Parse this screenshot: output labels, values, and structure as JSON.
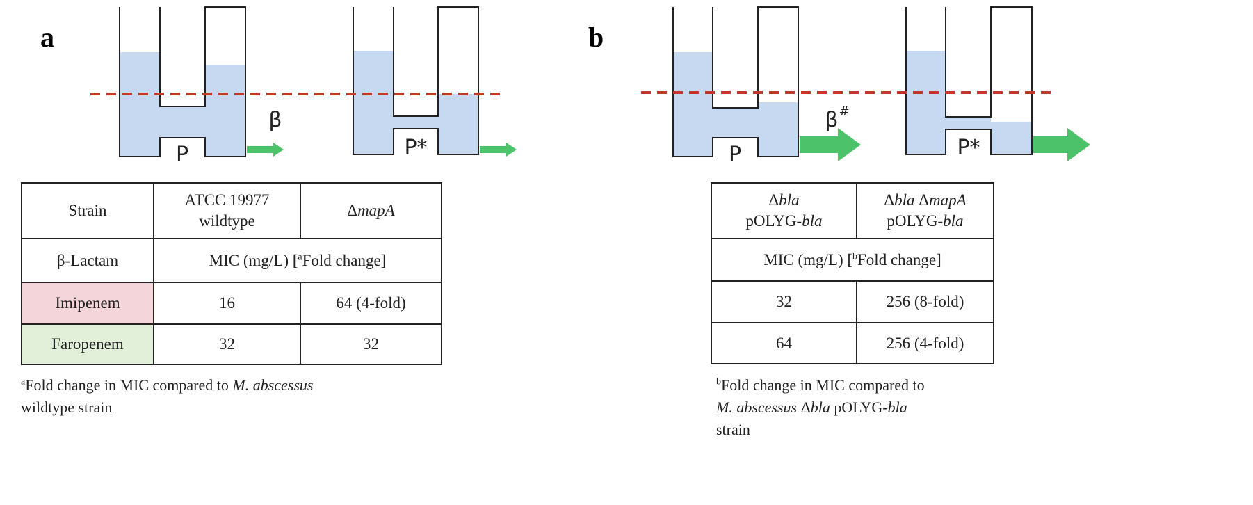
{
  "panel_a": {
    "label": "a",
    "diagram": {
      "left_pore": "P",
      "right_pore": "P*",
      "flux": "β"
    },
    "table": {
      "header": [
        "Strain",
        [
          "ATCC 19977",
          "wildtype"
        ],
        [
          "Δ",
          "mapA"
        ]
      ],
      "subheader": [
        "β-Lactam",
        [
          "MIC (mg/L) [",
          "a",
          "Fold change]"
        ]
      ],
      "rows": [
        [
          "Imipenem",
          "16",
          "64 (4-fold)"
        ],
        [
          "Faropenem",
          "32",
          "32"
        ]
      ]
    },
    "footnote": [
      "a",
      "Fold change in MIC compared to ",
      "M. abscessus",
      "wildtype strain"
    ]
  },
  "panel_b": {
    "label": "b",
    "diagram": {
      "left_pore": "P",
      "right_pore": "P*",
      "flux": "β",
      "flux_mark": "#"
    },
    "table": {
      "header": [
        [
          "Δ",
          "bla",
          "pOLYG-",
          "bla"
        ],
        [
          "Δ",
          "bla",
          " Δ",
          "mapA",
          "pOLYG-",
          "bla"
        ]
      ],
      "subheader": [
        "MIC (mg/L) [",
        "b",
        "Fold change]"
      ],
      "rows": [
        [
          "32",
          "256 (8-fold)"
        ],
        [
          "64",
          "256 (4-fold)"
        ]
      ]
    },
    "footnote": [
      "b",
      "Fold change in MIC compared to",
      "M. abscessus",
      " Δ",
      "bla",
      " pOLYG-",
      "bla",
      "strain"
    ]
  }
}
